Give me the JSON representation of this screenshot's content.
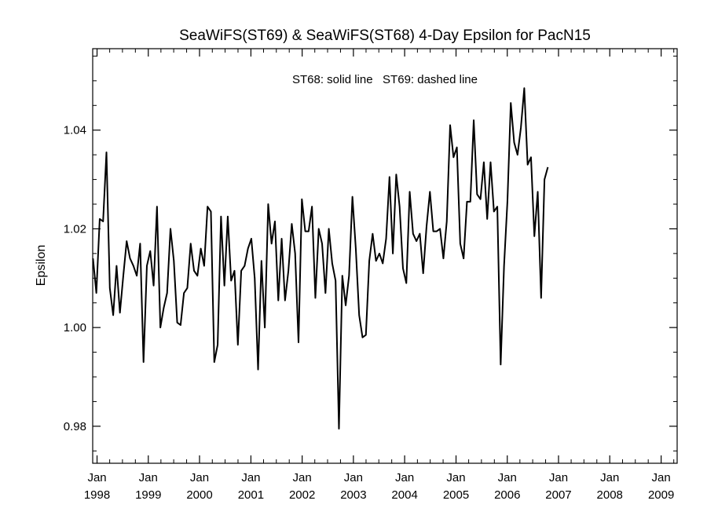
{
  "chart_data": {
    "type": "line",
    "title": "SeaWiFS(ST69) & SeaWiFS(ST68) 4-Day Epsilon for PacN15",
    "ylabel": "Epsilon",
    "xlabel": "",
    "annotation": "ST68: solid line   ST69: dashed line",
    "ylim": [
      0.9725,
      1.0565
    ],
    "xlim": [
      "1997-12-01",
      "2009-04-25"
    ],
    "y_ticks": [
      "0.98",
      "1.00",
      "1.02",
      "1.04"
    ],
    "x_ticks": [
      {
        "date": "1998-01-01",
        "month": "Jan",
        "year": "1998"
      },
      {
        "date": "1999-01-01",
        "month": "Jan",
        "year": "1999"
      },
      {
        "date": "2000-01-01",
        "month": "Jan",
        "year": "2000"
      },
      {
        "date": "2001-01-01",
        "month": "Jan",
        "year": "2001"
      },
      {
        "date": "2002-01-01",
        "month": "Jan",
        "year": "2002"
      },
      {
        "date": "2003-01-01",
        "month": "Jan",
        "year": "2003"
      },
      {
        "date": "2004-01-01",
        "month": "Jan",
        "year": "2004"
      },
      {
        "date": "2005-01-01",
        "month": "Jan",
        "year": "2005"
      },
      {
        "date": "2006-01-01",
        "month": "Jan",
        "year": "2006"
      },
      {
        "date": "2007-01-01",
        "month": "Jan",
        "year": "2007"
      },
      {
        "date": "2008-01-01",
        "month": "Jan",
        "year": "2008"
      },
      {
        "date": "2009-01-01",
        "month": "Jan",
        "year": "2009"
      }
    ],
    "series": [
      {
        "style": "solid",
        "points": [
          [
            "1997-12-03",
            1.014
          ],
          [
            "1997-12-27",
            1.007
          ],
          [
            "1998-01-20",
            1.022
          ],
          [
            "1998-02-13",
            1.0215
          ],
          [
            "1998-03-09",
            1.0355
          ],
          [
            "1998-04-02",
            1.008
          ],
          [
            "1998-04-26",
            1.0025
          ],
          [
            "1998-05-20",
            1.0125
          ],
          [
            "1998-06-13",
            1.003
          ],
          [
            "1998-07-07",
            1.0105
          ],
          [
            "1998-07-31",
            1.0175
          ],
          [
            "1998-08-24",
            1.014
          ],
          [
            "1998-09-17",
            1.0125
          ],
          [
            "1998-10-11",
            1.0105
          ],
          [
            "1998-11-04",
            1.017
          ],
          [
            "1998-11-28",
            0.993
          ],
          [
            "1998-12-22",
            1.0125
          ],
          [
            "1999-01-15",
            1.0155
          ],
          [
            "1999-02-08",
            1.0085
          ],
          [
            "1999-03-04",
            1.0245
          ],
          [
            "1999-03-28",
            1.0
          ],
          [
            "1999-04-21",
            1.004
          ],
          [
            "1999-05-15",
            1.007
          ],
          [
            "1999-06-08",
            1.02
          ],
          [
            "1999-07-02",
            1.0135
          ],
          [
            "1999-07-26",
            1.001
          ],
          [
            "1999-08-19",
            1.0005
          ],
          [
            "1999-09-12",
            1.007
          ],
          [
            "1999-10-06",
            1.008
          ],
          [
            "1999-10-30",
            1.017
          ],
          [
            "1999-11-23",
            1.0115
          ],
          [
            "1999-12-17",
            1.0105
          ],
          [
            "2000-01-10",
            1.016
          ],
          [
            "2000-02-03",
            1.0125
          ],
          [
            "2000-02-27",
            1.0245
          ],
          [
            "2000-03-22",
            1.0235
          ],
          [
            "2000-04-15",
            0.993
          ],
          [
            "2000-05-09",
            0.9965
          ],
          [
            "2000-06-02",
            1.0225
          ],
          [
            "2000-06-26",
            1.0085
          ],
          [
            "2000-07-20",
            1.0225
          ],
          [
            "2000-08-13",
            1.0095
          ],
          [
            "2000-09-06",
            1.0115
          ],
          [
            "2000-09-30",
            0.9965
          ],
          [
            "2000-10-24",
            1.0115
          ],
          [
            "2000-11-17",
            1.0125
          ],
          [
            "2000-12-11",
            1.016
          ],
          [
            "2001-01-04",
            1.018
          ],
          [
            "2001-01-28",
            1.01
          ],
          [
            "2001-02-21",
            0.9915
          ],
          [
            "2001-03-17",
            1.0135
          ],
          [
            "2001-04-10",
            1.0
          ],
          [
            "2001-05-04",
            1.025
          ],
          [
            "2001-05-28",
            1.017
          ],
          [
            "2001-06-21",
            1.0215
          ],
          [
            "2001-07-15",
            1.0055
          ],
          [
            "2001-08-08",
            1.018
          ],
          [
            "2001-09-01",
            1.0055
          ],
          [
            "2001-09-25",
            1.0115
          ],
          [
            "2001-10-19",
            1.021
          ],
          [
            "2001-11-12",
            1.015
          ],
          [
            "2001-12-06",
            0.997
          ],
          [
            "2001-12-30",
            1.026
          ],
          [
            "2002-01-23",
            1.0195
          ],
          [
            "2002-02-16",
            1.0195
          ],
          [
            "2002-03-12",
            1.0245
          ],
          [
            "2002-04-05",
            1.006
          ],
          [
            "2002-04-29",
            1.02
          ],
          [
            "2002-05-23",
            1.017
          ],
          [
            "2002-06-16",
            1.007
          ],
          [
            "2002-07-10",
            1.02
          ],
          [
            "2002-08-03",
            1.013
          ],
          [
            "2002-08-27",
            1.0095
          ],
          [
            "2002-09-20",
            0.9795
          ],
          [
            "2002-10-14",
            1.0105
          ],
          [
            "2002-11-07",
            1.0045
          ],
          [
            "2002-12-01",
            1.0105
          ],
          [
            "2002-12-25",
            1.0265
          ],
          [
            "2003-01-18",
            1.016
          ],
          [
            "2003-02-11",
            1.0025
          ],
          [
            "2003-03-07",
            0.998
          ],
          [
            "2003-03-31",
            0.9985
          ],
          [
            "2003-04-24",
            1.0135
          ],
          [
            "2003-05-18",
            1.019
          ],
          [
            "2003-06-11",
            1.0135
          ],
          [
            "2003-07-05",
            1.015
          ],
          [
            "2003-07-29",
            1.013
          ],
          [
            "2003-08-22",
            1.018
          ],
          [
            "2003-09-15",
            1.0305
          ],
          [
            "2003-10-09",
            1.015
          ],
          [
            "2003-11-02",
            1.031
          ],
          [
            "2003-11-26",
            1.0245
          ],
          [
            "2003-12-20",
            1.012
          ],
          [
            "2004-01-13",
            1.009
          ],
          [
            "2004-02-06",
            1.0275
          ],
          [
            "2004-03-01",
            1.019
          ],
          [
            "2004-03-25",
            1.0175
          ],
          [
            "2004-04-18",
            1.019
          ],
          [
            "2004-05-12",
            1.011
          ],
          [
            "2004-06-05",
            1.0205
          ],
          [
            "2004-06-29",
            1.0275
          ],
          [
            "2004-07-23",
            1.0195
          ],
          [
            "2004-08-16",
            1.0195
          ],
          [
            "2004-09-09",
            1.02
          ],
          [
            "2004-10-03",
            1.014
          ],
          [
            "2004-10-27",
            1.0215
          ],
          [
            "2004-11-20",
            1.041
          ],
          [
            "2004-12-14",
            1.0345
          ],
          [
            "2005-01-07",
            1.0365
          ],
          [
            "2005-01-31",
            1.017
          ],
          [
            "2005-02-24",
            1.014
          ],
          [
            "2005-03-20",
            1.0255
          ],
          [
            "2005-04-13",
            1.0255
          ],
          [
            "2005-05-07",
            1.042
          ],
          [
            "2005-05-31",
            1.027
          ],
          [
            "2005-06-24",
            1.026
          ],
          [
            "2005-07-18",
            1.0335
          ],
          [
            "2005-08-11",
            1.022
          ],
          [
            "2005-09-04",
            1.0335
          ],
          [
            "2005-09-28",
            1.0235
          ],
          [
            "2005-10-22",
            1.0245
          ],
          [
            "2005-11-15",
            0.9925
          ],
          [
            "2005-12-09",
            1.0125
          ],
          [
            "2006-01-02",
            1.0255
          ],
          [
            "2006-01-26",
            1.0455
          ],
          [
            "2006-02-19",
            1.0375
          ],
          [
            "2006-03-15",
            1.035
          ],
          [
            "2006-04-08",
            1.0405
          ],
          [
            "2006-05-02",
            1.0485
          ],
          [
            "2006-05-26",
            1.033
          ],
          [
            "2006-06-19",
            1.0345
          ],
          [
            "2006-07-13",
            1.0185
          ],
          [
            "2006-08-06",
            1.0275
          ],
          [
            "2006-08-30",
            1.006
          ],
          [
            "2006-09-23",
            1.03
          ],
          [
            "2006-10-17",
            1.0325
          ]
        ]
      }
    ]
  }
}
